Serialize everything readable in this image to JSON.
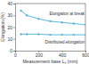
{
  "chart_data": {
    "type": "line",
    "x_label": "Measurement base L₀ (mm)",
    "y_label": "Elongation (%)",
    "x": [
      50,
      100,
      200,
      300,
      400,
      500,
      600
    ],
    "series": [
      {
        "name": "Elongation at break",
        "color": "#5fb8d8",
        "marker": "circle",
        "values": [
          34,
          30,
          27,
          25,
          24,
          23,
          22
        ]
      },
      {
        "name": "Distributed elongation",
        "color": "#5fb8d8",
        "marker": "circle",
        "values": [
          14,
          14,
          14,
          13.5,
          13.5,
          13.5,
          13.5
        ]
      }
    ],
    "xlim": [
      0,
      600
    ],
    "xticks": [
      0,
      200,
      400,
      600
    ],
    "ylim": [
      0,
      40
    ],
    "yticks": [
      0,
      10,
      20,
      30,
      40
    ],
    "grid": false
  }
}
